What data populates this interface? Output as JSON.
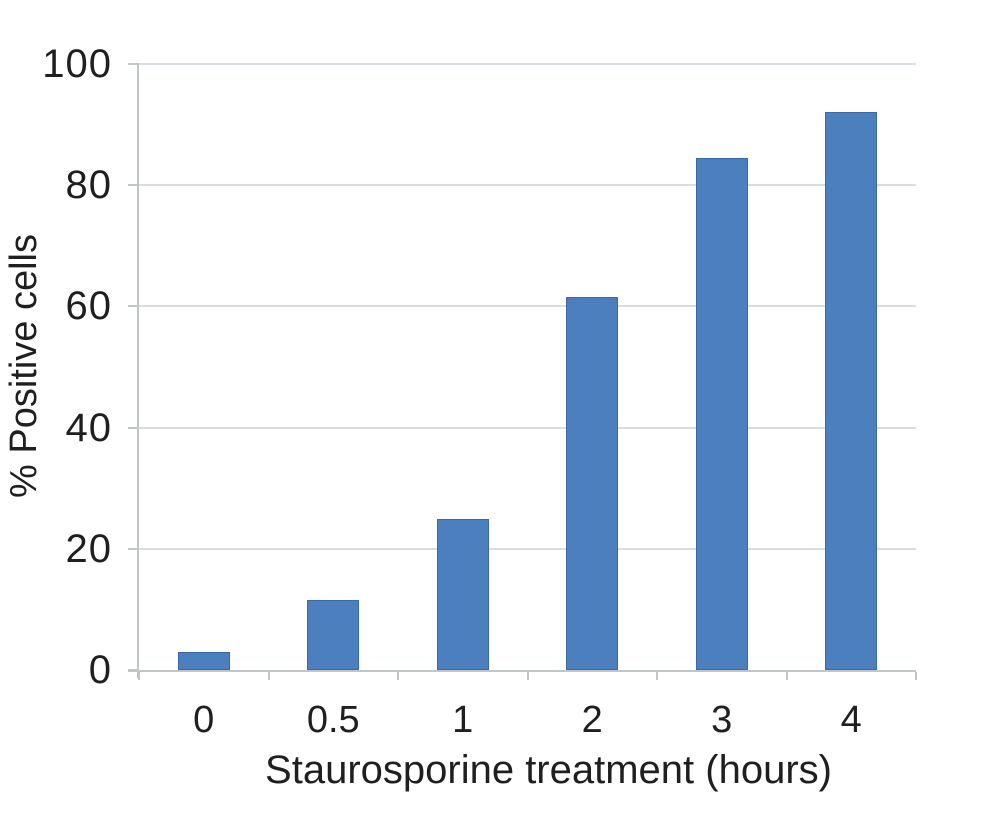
{
  "chart_data": {
    "type": "bar",
    "categories": [
      "0",
      "0.5",
      "1",
      "2",
      "3",
      "4"
    ],
    "values": [
      3,
      11.5,
      25,
      61.5,
      84.5,
      92
    ],
    "title": "",
    "xlabel": "Staurosporine treatment (hours)",
    "ylabel": "% Positive cells",
    "ylim": [
      0,
      100
    ],
    "yticks": [
      0,
      20,
      40,
      60,
      80,
      100
    ],
    "grid": "horizontal-only",
    "legend": "none",
    "colors": {
      "bar_fill": "#4b7fbe",
      "bar_edge": "#3a6aa5",
      "gridline": "#d8dde5",
      "axis": "#c0c5cc",
      "text": "#1f1f1f",
      "background": "#ffffff"
    }
  }
}
